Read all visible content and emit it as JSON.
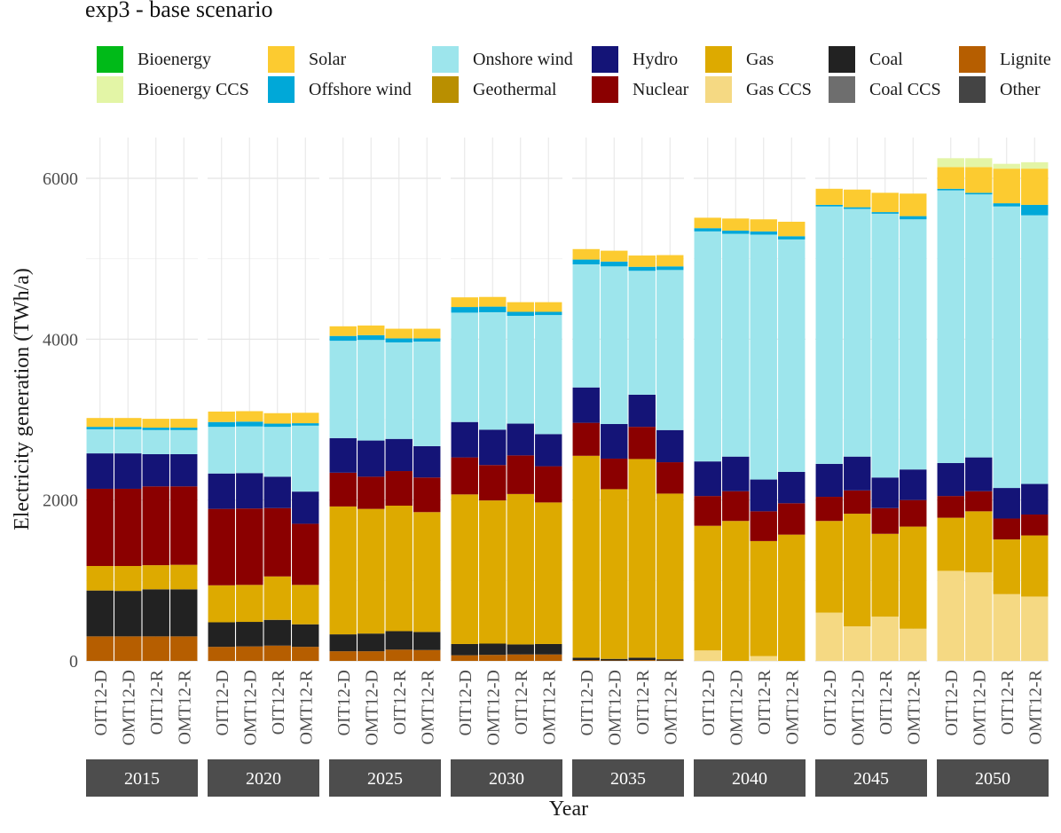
{
  "chart_data": {
    "type": "bar",
    "stacked": true,
    "title": "exp3 - base scenario",
    "xlabel": "Year",
    "ylabel": "Electricity generation (TWh/a)",
    "ylim": [
      0,
      6300
    ],
    "yticks": [
      0,
      2000,
      4000,
      6000
    ],
    "facets": [
      "2015",
      "2020",
      "2025",
      "2030",
      "2035",
      "2040",
      "2045",
      "2050"
    ],
    "categories": [
      "OIT12-D",
      "OMT12-D",
      "OIT12-R",
      "OMT12-R"
    ],
    "legend": [
      {
        "name": "Bioenergy",
        "color": "#00BA18"
      },
      {
        "name": "Bioenergy CCS",
        "color": "#E3F5A6"
      },
      {
        "name": "Solar",
        "color": "#FCCB30"
      },
      {
        "name": "Offshore wind",
        "color": "#00A8D8"
      },
      {
        "name": "Onshore wind",
        "color": "#9DE5EC"
      },
      {
        "name": "Geothermal",
        "color": "#B98F00"
      },
      {
        "name": "Hydro",
        "color": "#141477"
      },
      {
        "name": "Nuclear",
        "color": "#8B0000"
      },
      {
        "name": "Gas",
        "color": "#DDAA00"
      },
      {
        "name": "Gas CCS",
        "color": "#F5D983"
      },
      {
        "name": "Coal",
        "color": "#222222"
      },
      {
        "name": "Coal CCS",
        "color": "#6E6E6E"
      },
      {
        "name": "Lignite",
        "color": "#B65E00"
      },
      {
        "name": "Other",
        "color": "#444444"
      }
    ],
    "stack_order": [
      "Lignite",
      "Coal",
      "Gas CCS",
      "Gas",
      "Nuclear",
      "Hydro",
      "Onshore wind",
      "Offshore wind",
      "Solar",
      "Bioenergy CCS"
    ],
    "bars": [
      {
        "year": "2015",
        "scenario": "OIT12-D",
        "Lignite": 305,
        "Coal": 570,
        "Gas CCS": 0,
        "Gas": 305,
        "Nuclear": 960,
        "Hydro": 440,
        "Onshore wind": 300,
        "Offshore wind": 30,
        "Solar": 110,
        "Bioenergy CCS": 0
      },
      {
        "year": "2015",
        "scenario": "OMT12-D",
        "Lignite": 305,
        "Coal": 565,
        "Gas CCS": 0,
        "Gas": 310,
        "Nuclear": 960,
        "Hydro": 440,
        "Onshore wind": 300,
        "Offshore wind": 30,
        "Solar": 110,
        "Bioenergy CCS": 0
      },
      {
        "year": "2015",
        "scenario": "OIT12-R",
        "Lignite": 305,
        "Coal": 585,
        "Gas CCS": 0,
        "Gas": 300,
        "Nuclear": 980,
        "Hydro": 400,
        "Onshore wind": 300,
        "Offshore wind": 30,
        "Solar": 110,
        "Bioenergy CCS": 0
      },
      {
        "year": "2015",
        "scenario": "OMT12-R",
        "Lignite": 305,
        "Coal": 585,
        "Gas CCS": 0,
        "Gas": 305,
        "Nuclear": 975,
        "Hydro": 400,
        "Onshore wind": 300,
        "Offshore wind": 30,
        "Solar": 110,
        "Bioenergy CCS": 0
      },
      {
        "year": "2020",
        "scenario": "OIT12-D",
        "Lignite": 175,
        "Coal": 305,
        "Gas CCS": 0,
        "Gas": 460,
        "Nuclear": 950,
        "Hydro": 440,
        "Onshore wind": 580,
        "Offshore wind": 60,
        "Solar": 130,
        "Bioenergy CCS": 0
      },
      {
        "year": "2020",
        "scenario": "OMT12-D",
        "Lignite": 180,
        "Coal": 305,
        "Gas CCS": 0,
        "Gas": 460,
        "Nuclear": 950,
        "Hydro": 440,
        "Onshore wind": 580,
        "Offshore wind": 60,
        "Solar": 130,
        "Bioenergy CCS": 0
      },
      {
        "year": "2020",
        "scenario": "OIT12-R",
        "Lignite": 190,
        "Coal": 320,
        "Gas CCS": 0,
        "Gas": 540,
        "Nuclear": 850,
        "Hydro": 390,
        "Onshore wind": 620,
        "Offshore wind": 40,
        "Solar": 130,
        "Bioenergy CCS": 0
      },
      {
        "year": "2020",
        "scenario": "OMT12-R",
        "Lignite": 175,
        "Coal": 280,
        "Gas CCS": 0,
        "Gas": 490,
        "Nuclear": 760,
        "Hydro": 400,
        "Onshore wind": 820,
        "Offshore wind": 30,
        "Solar": 130,
        "Bioenergy CCS": 0
      },
      {
        "year": "2025",
        "scenario": "OIT12-D",
        "Lignite": 120,
        "Coal": 210,
        "Gas CCS": 0,
        "Gas": 1590,
        "Nuclear": 420,
        "Hydro": 430,
        "Onshore wind": 1210,
        "Offshore wind": 60,
        "Solar": 120,
        "Bioenergy CCS": 0
      },
      {
        "year": "2025",
        "scenario": "OMT12-D",
        "Lignite": 120,
        "Coal": 220,
        "Gas CCS": 0,
        "Gas": 1550,
        "Nuclear": 400,
        "Hydro": 450,
        "Onshore wind": 1250,
        "Offshore wind": 60,
        "Solar": 120,
        "Bioenergy CCS": 0
      },
      {
        "year": "2025",
        "scenario": "OIT12-R",
        "Lignite": 140,
        "Coal": 230,
        "Gas CCS": 0,
        "Gas": 1560,
        "Nuclear": 430,
        "Hydro": 400,
        "Onshore wind": 1200,
        "Offshore wind": 50,
        "Solar": 120,
        "Bioenergy CCS": 0
      },
      {
        "year": "2025",
        "scenario": "OMT12-R",
        "Lignite": 135,
        "Coal": 225,
        "Gas CCS": 0,
        "Gas": 1490,
        "Nuclear": 430,
        "Hydro": 390,
        "Onshore wind": 1300,
        "Offshore wind": 40,
        "Solar": 120,
        "Bioenergy CCS": 0
      },
      {
        "year": "2030",
        "scenario": "OIT12-D",
        "Lignite": 70,
        "Coal": 140,
        "Gas CCS": 0,
        "Gas": 1860,
        "Nuclear": 460,
        "Hydro": 440,
        "Onshore wind": 1360,
        "Offshore wind": 70,
        "Solar": 120,
        "Bioenergy CCS": 0
      },
      {
        "year": "2030",
        "scenario": "OMT12-D",
        "Lignite": 75,
        "Coal": 140,
        "Gas CCS": 0,
        "Gas": 1780,
        "Nuclear": 440,
        "Hydro": 440,
        "Onshore wind": 1460,
        "Offshore wind": 70,
        "Solar": 120,
        "Bioenergy CCS": 0
      },
      {
        "year": "2030",
        "scenario": "OIT12-R",
        "Lignite": 80,
        "Coal": 125,
        "Gas CCS": 0,
        "Gas": 1870,
        "Nuclear": 480,
        "Hydro": 395,
        "Onshore wind": 1340,
        "Offshore wind": 50,
        "Solar": 120,
        "Bioenergy CCS": 0
      },
      {
        "year": "2030",
        "scenario": "OMT12-R",
        "Lignite": 80,
        "Coal": 130,
        "Gas CCS": 0,
        "Gas": 1760,
        "Nuclear": 450,
        "Hydro": 400,
        "Onshore wind": 1480,
        "Offshore wind": 40,
        "Solar": 120,
        "Bioenergy CCS": 0
      },
      {
        "year": "2035",
        "scenario": "OIT12-D",
        "Lignite": 10,
        "Coal": 30,
        "Gas CCS": 0,
        "Gas": 2510,
        "Nuclear": 410,
        "Hydro": 440,
        "Onshore wind": 1530,
        "Offshore wind": 60,
        "Solar": 130,
        "Bioenergy CCS": 0
      },
      {
        "year": "2035",
        "scenario": "OMT12-D",
        "Lignite": 5,
        "Coal": 20,
        "Gas CCS": 0,
        "Gas": 2110,
        "Nuclear": 380,
        "Hydro": 430,
        "Onshore wind": 1960,
        "Offshore wind": 60,
        "Solar": 135,
        "Bioenergy CCS": 0
      },
      {
        "year": "2035",
        "scenario": "OIT12-R",
        "Lignite": 10,
        "Coal": 30,
        "Gas CCS": 0,
        "Gas": 2470,
        "Nuclear": 400,
        "Hydro": 400,
        "Onshore wind": 1540,
        "Offshore wind": 50,
        "Solar": 140,
        "Bioenergy CCS": 0
      },
      {
        "year": "2035",
        "scenario": "OMT12-R",
        "Lignite": 5,
        "Coal": 15,
        "Gas CCS": 0,
        "Gas": 2060,
        "Nuclear": 390,
        "Hydro": 400,
        "Onshore wind": 1990,
        "Offshore wind": 45,
        "Solar": 140,
        "Bioenergy CCS": 0
      },
      {
        "year": "2040",
        "scenario": "OIT12-D",
        "Lignite": 0,
        "Coal": 0,
        "Gas CCS": 130,
        "Gas": 1550,
        "Nuclear": 370,
        "Hydro": 430,
        "Onshore wind": 2860,
        "Offshore wind": 40,
        "Solar": 130,
        "Bioenergy CCS": 0
      },
      {
        "year": "2040",
        "scenario": "OMT12-D",
        "Lignite": 0,
        "Coal": 0,
        "Gas CCS": 0,
        "Gas": 1740,
        "Nuclear": 370,
        "Hydro": 430,
        "Onshore wind": 2770,
        "Offshore wind": 40,
        "Solar": 150,
        "Bioenergy CCS": 0
      },
      {
        "year": "2040",
        "scenario": "OIT12-R",
        "Lignite": 0,
        "Coal": 0,
        "Gas CCS": 60,
        "Gas": 1430,
        "Nuclear": 370,
        "Hydro": 395,
        "Onshore wind": 3045,
        "Offshore wind": 40,
        "Solar": 150,
        "Bioenergy CCS": 0
      },
      {
        "year": "2040",
        "scenario": "OMT12-R",
        "Lignite": 0,
        "Coal": 0,
        "Gas CCS": 0,
        "Gas": 1570,
        "Nuclear": 390,
        "Hydro": 390,
        "Onshore wind": 2890,
        "Offshore wind": 40,
        "Solar": 180,
        "Bioenergy CCS": 0
      },
      {
        "year": "2045",
        "scenario": "OIT12-D",
        "Lignite": 0,
        "Coal": 0,
        "Gas CCS": 600,
        "Gas": 1140,
        "Nuclear": 300,
        "Hydro": 410,
        "Onshore wind": 3200,
        "Offshore wind": 20,
        "Solar": 200,
        "Bioenergy CCS": 0
      },
      {
        "year": "2045",
        "scenario": "OMT12-D",
        "Lignite": 0,
        "Coal": 0,
        "Gas CCS": 430,
        "Gas": 1400,
        "Nuclear": 290,
        "Hydro": 420,
        "Onshore wind": 3080,
        "Offshore wind": 20,
        "Solar": 220,
        "Bioenergy CCS": 0
      },
      {
        "year": "2045",
        "scenario": "OIT12-R",
        "Lignite": 0,
        "Coal": 0,
        "Gas CCS": 550,
        "Gas": 1030,
        "Nuclear": 320,
        "Hydro": 380,
        "Onshore wind": 3280,
        "Offshore wind": 20,
        "Solar": 240,
        "Bioenergy CCS": 0
      },
      {
        "year": "2045",
        "scenario": "OMT12-R",
        "Lignite": 0,
        "Coal": 0,
        "Gas CCS": 400,
        "Gas": 1270,
        "Nuclear": 330,
        "Hydro": 380,
        "Onshore wind": 3110,
        "Offshore wind": 40,
        "Solar": 280,
        "Bioenergy CCS": 0
      },
      {
        "year": "2050",
        "scenario": "OIT12-D",
        "Lignite": 0,
        "Coal": 0,
        "Gas CCS": 1120,
        "Gas": 660,
        "Nuclear": 270,
        "Hydro": 410,
        "Onshore wind": 3390,
        "Offshore wind": 20,
        "Solar": 270,
        "Bioenergy CCS": 110
      },
      {
        "year": "2050",
        "scenario": "OMT12-D",
        "Lignite": 0,
        "Coal": 0,
        "Gas CCS": 1100,
        "Gas": 760,
        "Nuclear": 250,
        "Hydro": 420,
        "Onshore wind": 3270,
        "Offshore wind": 20,
        "Solar": 320,
        "Bioenergy CCS": 110
      },
      {
        "year": "2050",
        "scenario": "OIT12-R",
        "Lignite": 0,
        "Coal": 0,
        "Gas CCS": 830,
        "Gas": 680,
        "Nuclear": 260,
        "Hydro": 380,
        "Onshore wind": 3500,
        "Offshore wind": 40,
        "Solar": 430,
        "Bioenergy CCS": 60
      },
      {
        "year": "2050",
        "scenario": "OMT12-R",
        "Lignite": 0,
        "Coal": 0,
        "Gas CCS": 800,
        "Gas": 760,
        "Nuclear": 260,
        "Hydro": 380,
        "Onshore wind": 3340,
        "Offshore wind": 130,
        "Solar": 450,
        "Bioenergy CCS": 80
      }
    ]
  }
}
